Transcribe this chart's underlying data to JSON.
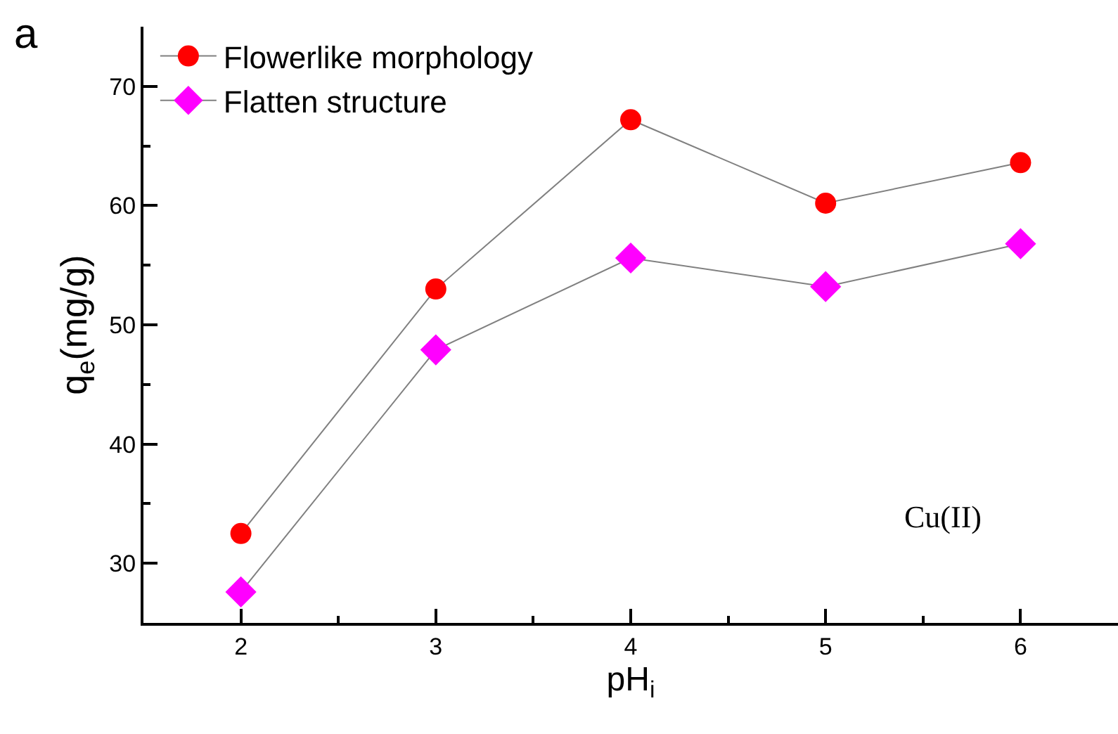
{
  "chart_data": {
    "type": "line",
    "xlabel": "pH$_{i}$",
    "ylabel": "q$_{e}$(mg/g)",
    "annotations": [
      "a",
      "Cu(II)"
    ],
    "x": [
      2,
      3,
      4,
      5,
      6
    ],
    "series": [
      {
        "name": "Flowerlike morphology",
        "color": "#ff0000",
        "marker": "circle",
        "values": [
          32.5,
          53.0,
          67.2,
          60.2,
          63.6
        ]
      },
      {
        "name": "Flatten structure",
        "color": "#ff00ff",
        "marker": "diamond",
        "values": [
          27.6,
          47.9,
          55.6,
          53.2,
          56.8
        ]
      }
    ],
    "xlim": [
      1.5,
      6.5
    ],
    "xticks": [
      2,
      3,
      4,
      5,
      6
    ],
    "ylim": [
      25,
      75
    ],
    "yticks": [
      30,
      40,
      50,
      60,
      70
    ],
    "legend": "top left",
    "line_style": "solid"
  }
}
